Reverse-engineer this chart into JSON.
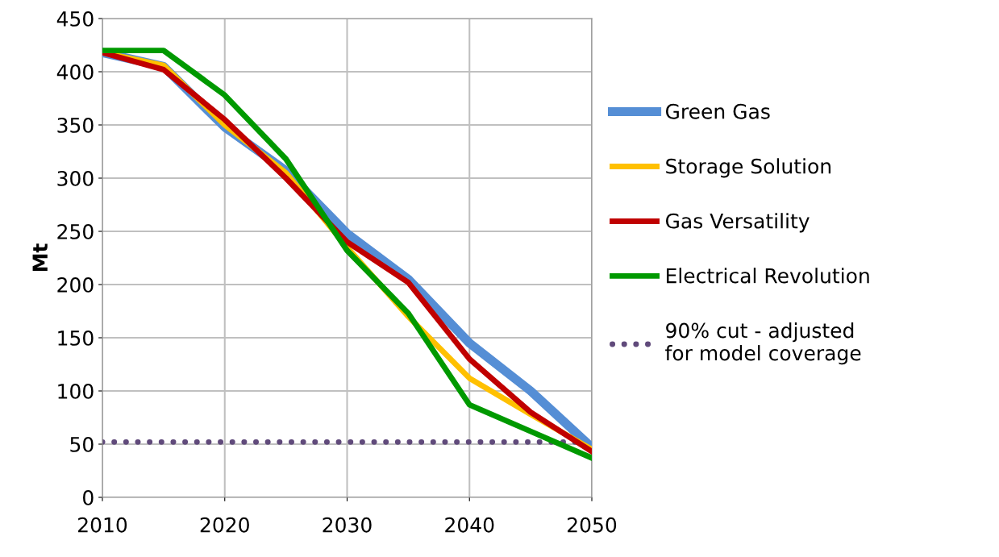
{
  "chart_data": {
    "type": "line",
    "ylabel": "Mt",
    "x": [
      2010,
      2015,
      2020,
      2025,
      2030,
      2035,
      2040,
      2045,
      2050
    ],
    "series": [
      {
        "name": "Green Gas",
        "color": "#558ed5",
        "values": [
          418,
          405,
          348,
          307,
          248,
          205,
          145,
          100,
          47
        ]
      },
      {
        "name": "Storage Solution",
        "color": "#ffc000",
        "values": [
          418,
          406,
          350,
          305,
          235,
          170,
          112,
          78,
          45
        ]
      },
      {
        "name": "Gas Versatility",
        "color": "#c00000",
        "values": [
          418,
          402,
          355,
          300,
          240,
          202,
          130,
          80,
          43
        ]
      },
      {
        "name": "Electrical Revolution",
        "color": "#009900",
        "values": [
          420,
          420,
          378,
          318,
          232,
          173,
          87,
          62,
          37
        ]
      }
    ],
    "ref_lines": [
      {
        "axis": "y",
        "value": 52,
        "label": "90% cut - adjusted\nfor model coverage",
        "color": "#604a7b",
        "line_style": "dotted"
      }
    ],
    "xlim": [
      2010,
      2050
    ],
    "xticks": [
      2010,
      2020,
      2030,
      2040,
      2050
    ],
    "ylim": [
      0,
      450
    ],
    "yticks": [
      0,
      50,
      100,
      150,
      200,
      250,
      300,
      350,
      400,
      450
    ],
    "grid": true,
    "legend": "right",
    "marker": "none",
    "line_style": "solid"
  }
}
